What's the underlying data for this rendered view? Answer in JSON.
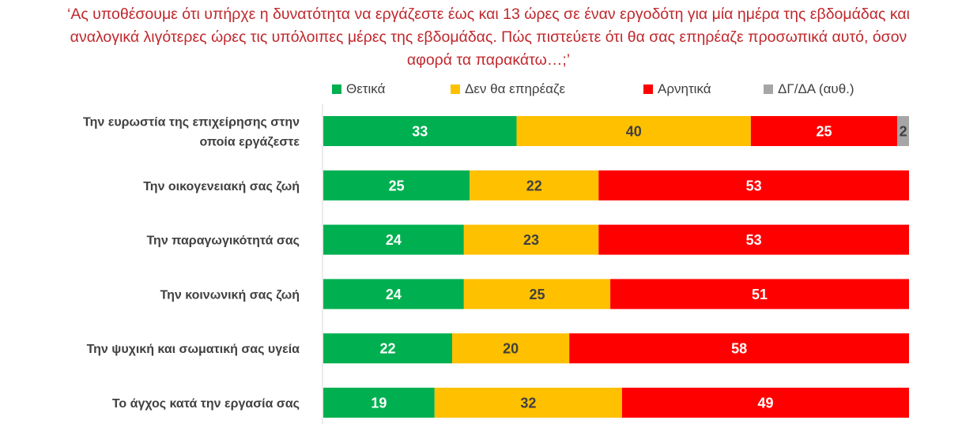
{
  "title_lines": [
    "‘Ας υποθέσουμε ότι υπήρχε η δυνατότητα να εργάζεστε έως και 13 ώρες σε έναν εργοδότη για μία ημέρα της εβδομάδας και",
    "αναλογικά λιγότερες ώρες τις υπόλοιπες μέρες της εβδομάδας. Πώς πιστεύετε ότι θα σας επηρέαζε προσωπικά αυτό, όσον",
    "αφορά τα παρακάτω…;’"
  ],
  "chart_data": {
    "type": "bar",
    "orientation": "horizontal",
    "stacked": true,
    "title": "‘Ας υποθέσουμε ότι υπήρχε η δυνατότητα να εργάζεστε έως και 13 ώρες σε έναν εργοδότη για μία ημέρα της εβδομάδας και αναλογικά λιγότερες ώρες τις υπόλοιπες μέρες της εβδομάδας. Πώς πιστεύετε ότι θα σας επηρέαζε προσωπικά αυτό, όσον αφορά τα παρακάτω…;’",
    "categories": [
      [
        "Την ευρωστία της επιχείρησης στην",
        "οποία εργάζεστε"
      ],
      [
        "Την οικογενειακή σας ζωή"
      ],
      [
        "Την παραγωγικότητά σας"
      ],
      [
        "Την κοινωνική σας ζωή"
      ],
      [
        "Την ψυχική και σωματική σας υγεία"
      ],
      [
        "Το άγχος κατά την εργασία σας"
      ]
    ],
    "series": [
      {
        "name": "Θετικά",
        "color": "#00b050",
        "label_color": "#ffffff",
        "values": [
          33,
          25,
          24,
          24,
          22,
          19
        ]
      },
      {
        "name": "Δεν θα επηρέαζε",
        "color": "#ffc000",
        "label_color": "#404040",
        "values": [
          40,
          22,
          23,
          25,
          20,
          32
        ]
      },
      {
        "name": "Αρνητικά",
        "color": "#ff0000",
        "label_color": "#ffffff",
        "values": [
          25,
          53,
          53,
          51,
          58,
          49
        ]
      },
      {
        "name": "ΔΓ/ΔΑ (αυθ.)",
        "color": "#a6a6a6",
        "label_color": "#404040",
        "values": [
          2,
          0,
          0,
          0,
          0,
          0
        ]
      }
    ],
    "xlim": [
      0,
      100
    ],
    "legend": "top",
    "grid": false
  }
}
